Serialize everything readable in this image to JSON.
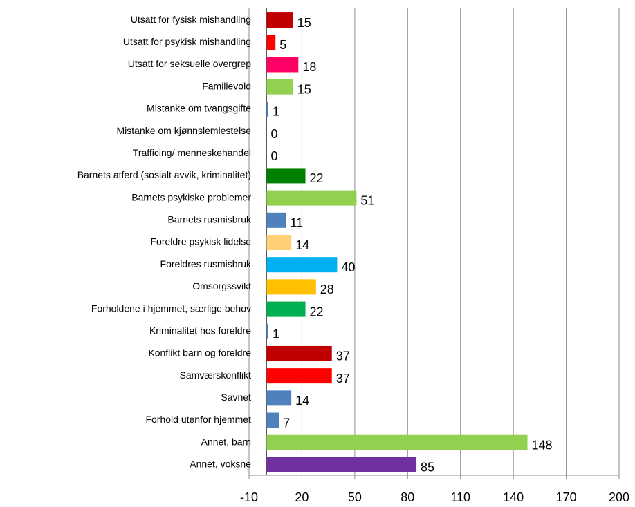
{
  "chart_data": {
    "type": "bar",
    "orientation": "horizontal",
    "categories": [
      "Utsatt for fysisk mishandling",
      "Utsatt for psykisk mishandling",
      "Utsatt for seksuelle overgrep",
      "Familievold",
      "Mistanke om tvangsgifte",
      "Mistanke om kjønnslemlestelse",
      "Trafficing/ menneskehandel",
      "Barnets atferd (sosialt avvik, kriminalitet)",
      "Barnets psykiske problemer",
      "Barnets rusmisbruk",
      "Foreldre psykisk lidelse",
      "Foreldres rusmisbruk",
      "Omsorgssvikt",
      "Forholdene i hjemmet, særlige behov",
      "Kriminalitet hos foreldre",
      "Konflikt barn og foreldre",
      "Samværskonflikt",
      "Savnet",
      "Forhold utenfor hjemmet",
      "Annet, barn",
      "Annet, voksne"
    ],
    "values": [
      15,
      5,
      18,
      15,
      1,
      0,
      0,
      22,
      51,
      11,
      14,
      40,
      28,
      22,
      1,
      37,
      37,
      14,
      7,
      148,
      85
    ],
    "colors": [
      "#c00000",
      "#ff0000",
      "#ff0066",
      "#92d050",
      "#4f81bd",
      "#4f81bd",
      "#4f81bd",
      "#008000",
      "#92d050",
      "#4f81bd",
      "#ffd174",
      "#00b0f0",
      "#ffc000",
      "#00b050",
      "#4f81bd",
      "#c00000",
      "#ff0000",
      "#4f81bd",
      "#4f81bd",
      "#92d050",
      "#7030a0"
    ],
    "xlim": [
      -10,
      200
    ],
    "xticks": [
      -10,
      20,
      50,
      80,
      110,
      140,
      170,
      200
    ],
    "grid": true
  }
}
